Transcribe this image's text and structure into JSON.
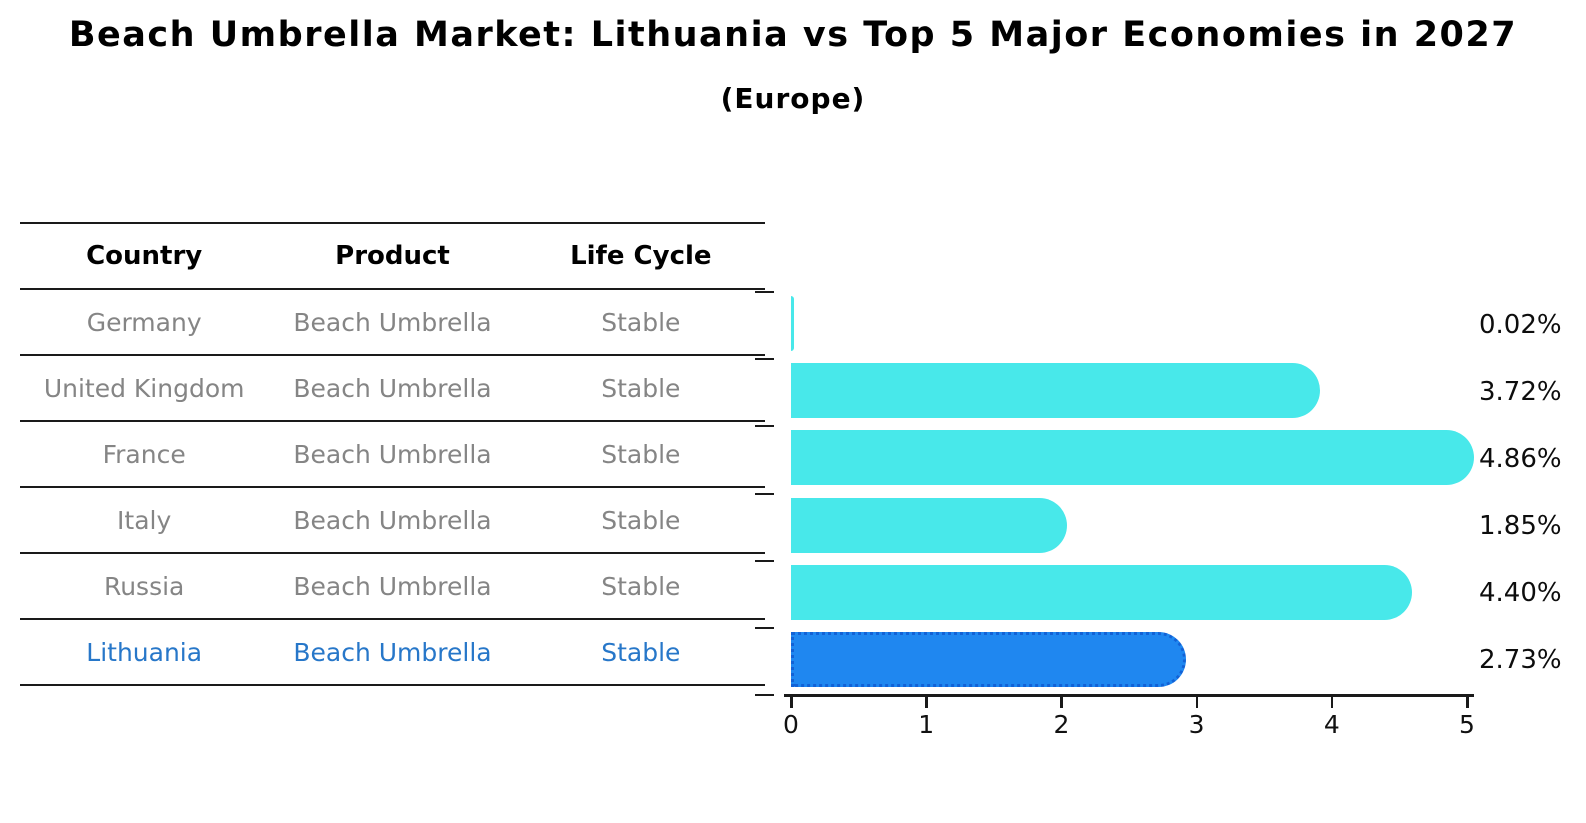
{
  "title": "Beach Umbrella Market: Lithuania vs Top 5 Major Economies in 2027",
  "subtitle": "(Europe)",
  "table": {
    "headers": [
      "Country",
      "Product",
      "Life Cycle"
    ],
    "rows": [
      {
        "country": "Germany",
        "product": "Beach Umbrella",
        "life_cycle": "Stable",
        "highlight": false
      },
      {
        "country": "United Kingdom",
        "product": "Beach Umbrella",
        "life_cycle": "Stable",
        "highlight": false
      },
      {
        "country": "France",
        "product": "Beach Umbrella",
        "life_cycle": "Stable",
        "highlight": false
      },
      {
        "country": "Italy",
        "product": "Beach Umbrella",
        "life_cycle": "Stable",
        "highlight": false
      },
      {
        "country": "Russia",
        "product": "Beach Umbrella",
        "life_cycle": "Stable",
        "highlight": false
      },
      {
        "country": "Lithuania",
        "product": "Beach Umbrella",
        "life_cycle": "Stable",
        "highlight": true
      }
    ]
  },
  "chart_data": {
    "type": "bar",
    "orientation": "horizontal",
    "categories": [
      "Germany",
      "United Kingdom",
      "France",
      "Italy",
      "Russia",
      "Lithuania"
    ],
    "values": [
      0.02,
      3.72,
      4.86,
      1.85,
      4.4,
      2.73
    ],
    "value_labels": [
      "0.02%",
      "3.72%",
      "4.86%",
      "1.85%",
      "4.40%",
      "2.73%"
    ],
    "x_ticks": [
      "0",
      "1",
      "2",
      "3",
      "4",
      "5"
    ],
    "xlim": [
      0,
      5
    ],
    "grid": false,
    "legend": "none",
    "bar_color": "#48e8ea",
    "highlight_index": 5,
    "highlight_bar_color": "#1f87f0",
    "highlight_bar_border": "#1262d6",
    "highlight_text_color": "#2777c9"
  },
  "colors": {
    "text": "#000000",
    "muted_text": "#858585",
    "axis": "#1a1a1a"
  }
}
